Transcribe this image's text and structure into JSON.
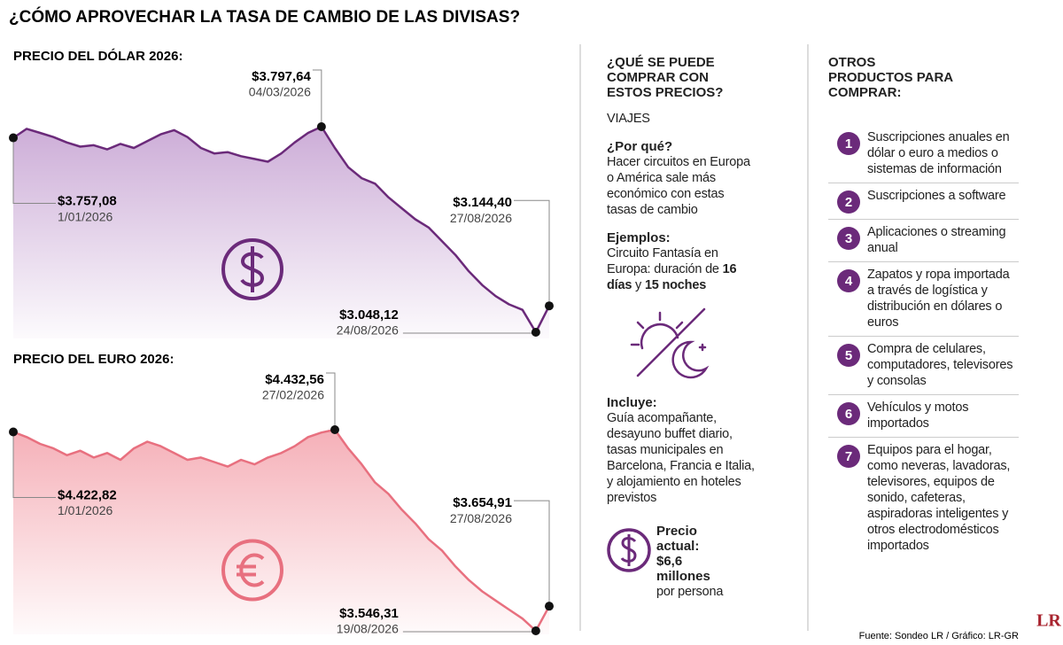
{
  "title": "¿CÓMO APROVECHAR LA TASA DE CAMBIO DE LAS DIVISAS?",
  "chart_data": [
    {
      "type": "line",
      "title": "PRECIO DEL DÓLAR 2026:",
      "color": "#6b2a7a",
      "fill": "#c7a4d3",
      "categories": [
        "1/01/2026",
        null,
        null,
        null,
        null,
        null,
        null,
        null,
        null,
        null,
        null,
        null,
        null,
        null,
        null,
        null,
        null,
        null,
        null,
        null,
        null,
        null,
        null,
        "04/03/2026",
        null,
        null,
        null,
        null,
        null,
        null,
        null,
        null,
        null,
        null,
        null,
        null,
        null,
        null,
        null,
        "24/08/2026",
        "27/08/2026"
      ],
      "values": [
        3757.08,
        3790,
        3775,
        3760,
        3740,
        3725,
        3730,
        3715,
        3735,
        3720,
        3745,
        3770,
        3785,
        3760,
        3720,
        3700,
        3705,
        3690,
        3680,
        3670,
        3700,
        3740,
        3775,
        3797.64,
        3720,
        3650,
        3610,
        3590,
        3540,
        3500,
        3460,
        3430,
        3380,
        3330,
        3270,
        3220,
        3180,
        3150,
        3130,
        3048.12,
        3144.4
      ],
      "value_labels": [
        "$3.757,08",
        null,
        null,
        null,
        null,
        null,
        null,
        null,
        null,
        null,
        null,
        null,
        null,
        null,
        null,
        null,
        null,
        null,
        null,
        null,
        null,
        null,
        null,
        "$3.797,64",
        null,
        null,
        null,
        null,
        null,
        null,
        null,
        null,
        null,
        null,
        null,
        null,
        null,
        null,
        null,
        "$3.048,12",
        "$3.144,40"
      ]
    },
    {
      "type": "line",
      "title": "PRECIO DEL EURO 2026:",
      "color": "#e8707f",
      "fill": "#f4a7b0",
      "categories": [
        "1/01/2026",
        null,
        null,
        null,
        null,
        null,
        null,
        null,
        null,
        null,
        null,
        null,
        null,
        null,
        null,
        null,
        null,
        null,
        null,
        null,
        null,
        null,
        null,
        null,
        "27/02/2026",
        null,
        null,
        null,
        null,
        null,
        null,
        null,
        null,
        null,
        null,
        null,
        null,
        null,
        null,
        "19/08/2026",
        "27/08/2026"
      ],
      "values": [
        4422.82,
        4400,
        4370,
        4350,
        4320,
        4340,
        4310,
        4330,
        4300,
        4350,
        4380,
        4360,
        4330,
        4300,
        4310,
        4290,
        4270,
        4300,
        4280,
        4310,
        4330,
        4360,
        4400,
        4420,
        4432.56,
        4350,
        4280,
        4200,
        4150,
        4080,
        4020,
        3950,
        3900,
        3830,
        3770,
        3720,
        3680,
        3640,
        3600,
        3546.31,
        3654.91
      ],
      "value_labels": [
        "$4.422,82",
        null,
        null,
        null,
        null,
        null,
        null,
        null,
        null,
        null,
        null,
        null,
        null,
        null,
        null,
        null,
        null,
        null,
        null,
        null,
        null,
        null,
        null,
        null,
        "$4.432,56",
        null,
        null,
        null,
        null,
        null,
        null,
        null,
        null,
        null,
        null,
        null,
        null,
        null,
        null,
        "$3.546,31",
        "$3.654,91"
      ]
    }
  ],
  "middle": {
    "title": "¿QUÉ SE PUEDE COMPRAR CON ESTOS PRECIOS?",
    "category": "VIAJES",
    "why_heading": "¿Por qué?",
    "why_text": "Hacer circuitos en Europa o América sale más económico con estas tasas de cambio",
    "examples_heading": "Ejemplos:",
    "examples_text": [
      "Circuito Fantasía en Europa: duración de ",
      "16 días",
      " y ",
      "15 noches"
    ],
    "includes_heading": "Incluye:",
    "includes_text": "Guía acompañante, desayuno buffet diario, tasas municipales en Barcelona, Francia e Italia, y alojamiento en hoteles previstos",
    "price_label": "Precio actual:",
    "price_value": "$6,6 millones",
    "price_unit": "por persona"
  },
  "right": {
    "title": "OTROS PRODUCTOS PARA COMPRAR:",
    "items": [
      {
        "number": 1,
        "text": "Suscripciones anuales en dólar o euro a medios o sistemas de información"
      },
      {
        "number": 2,
        "text": "Suscripciones a software"
      },
      {
        "number": 3,
        "text": "Aplicaciones o streaming anual"
      },
      {
        "number": 4,
        "text": "Zapatos y ropa importada a través de logística y distribución en dólares o euros"
      },
      {
        "number": 5,
        "text": "Compra de celulares, computadores, televisores y consolas"
      },
      {
        "number": 6,
        "text": "Vehículos y motos importados"
      },
      {
        "number": 7,
        "text": "Equipos para el hogar, como neveras, lavadoras, televisores, equipos de sonido, cafeteras, aspiradoras inteligentes y otros electrodomésticos importados"
      }
    ]
  },
  "source": "Fuente: Sondeo LR / Gráfico: LR-GR",
  "logo": "LR"
}
